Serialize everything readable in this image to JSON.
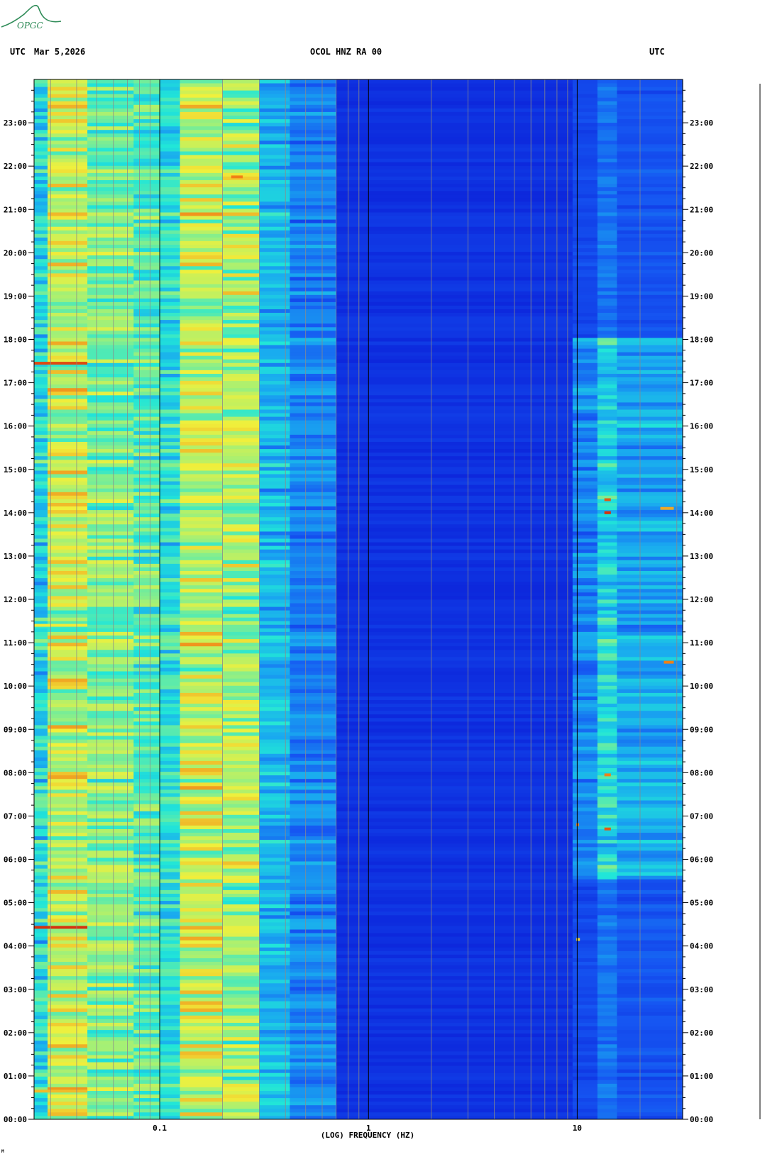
{
  "header": {
    "left_tz": "UTC",
    "date": "Mar 5,2026",
    "station": "OCOL HNZ RA 00",
    "right_tz": "UTC"
  },
  "logo": {
    "text": "OPGC",
    "color": "#2e8b57"
  },
  "footer_mark": "M",
  "chart_data": {
    "type": "heatmap",
    "title": "OCOL HNZ RA 00",
    "xlabel": "(LOG) FREQUENCY (HZ)",
    "ylabel": "",
    "x_scale": "log",
    "xlim": [
      0.025,
      32
    ],
    "ylim": [
      0,
      24
    ],
    "x_ticks": [
      {
        "value": 0.1,
        "label": "0.1"
      },
      {
        "value": 1,
        "label": "1"
      },
      {
        "value": 10,
        "label": "10"
      }
    ],
    "y_ticks": [
      "00:00",
      "01:00",
      "02:00",
      "03:00",
      "04:00",
      "05:00",
      "06:00",
      "07:00",
      "08:00",
      "09:00",
      "10:00",
      "11:00",
      "12:00",
      "13:00",
      "14:00",
      "15:00",
      "16:00",
      "17:00",
      "18:00",
      "19:00",
      "20:00",
      "21:00",
      "22:00",
      "23:00"
    ],
    "colormap": [
      "#0a1bd6",
      "#1656f2",
      "#19a8f0",
      "#21e6d8",
      "#9ef07a",
      "#f0f03c",
      "#f07a14",
      "#c80a0a"
    ],
    "hot_spots": [
      {
        "hour": 17.45,
        "f_from": 0.025,
        "f_to": 0.045,
        "level": 0.92
      },
      {
        "hour": 4.43,
        "f_from": 0.025,
        "f_to": 0.045,
        "level": 0.95
      },
      {
        "hour": 0.65,
        "f_from": 0.025,
        "f_to": 0.045,
        "level": 0.78
      },
      {
        "hour": 11.4,
        "f_from": 0.025,
        "f_to": 0.045,
        "level": 0.72
      },
      {
        "hour": 21.75,
        "f_from": 0.22,
        "f_to": 0.25,
        "level": 0.85
      },
      {
        "hour": 14.0,
        "f_from": 13.5,
        "f_to": 14.5,
        "level": 0.95
      },
      {
        "hour": 14.3,
        "f_from": 13.5,
        "f_to": 14.5,
        "level": 0.9
      },
      {
        "hour": 6.7,
        "f_from": 13.5,
        "f_to": 14.5,
        "level": 0.9
      },
      {
        "hour": 7.95,
        "f_from": 13.5,
        "f_to": 14.5,
        "level": 0.85
      },
      {
        "hour": 10.55,
        "f_from": 26,
        "f_to": 29,
        "level": 0.85
      },
      {
        "hour": 14.1,
        "f_from": 25,
        "f_to": 29,
        "level": 0.8
      },
      {
        "hour": 6.8,
        "f_from": 9.9,
        "f_to": 10.2,
        "level": 0.85
      },
      {
        "hour": 4.15,
        "f_from": 9.9,
        "f_to": 10.3,
        "level": 0.75
      }
    ]
  }
}
